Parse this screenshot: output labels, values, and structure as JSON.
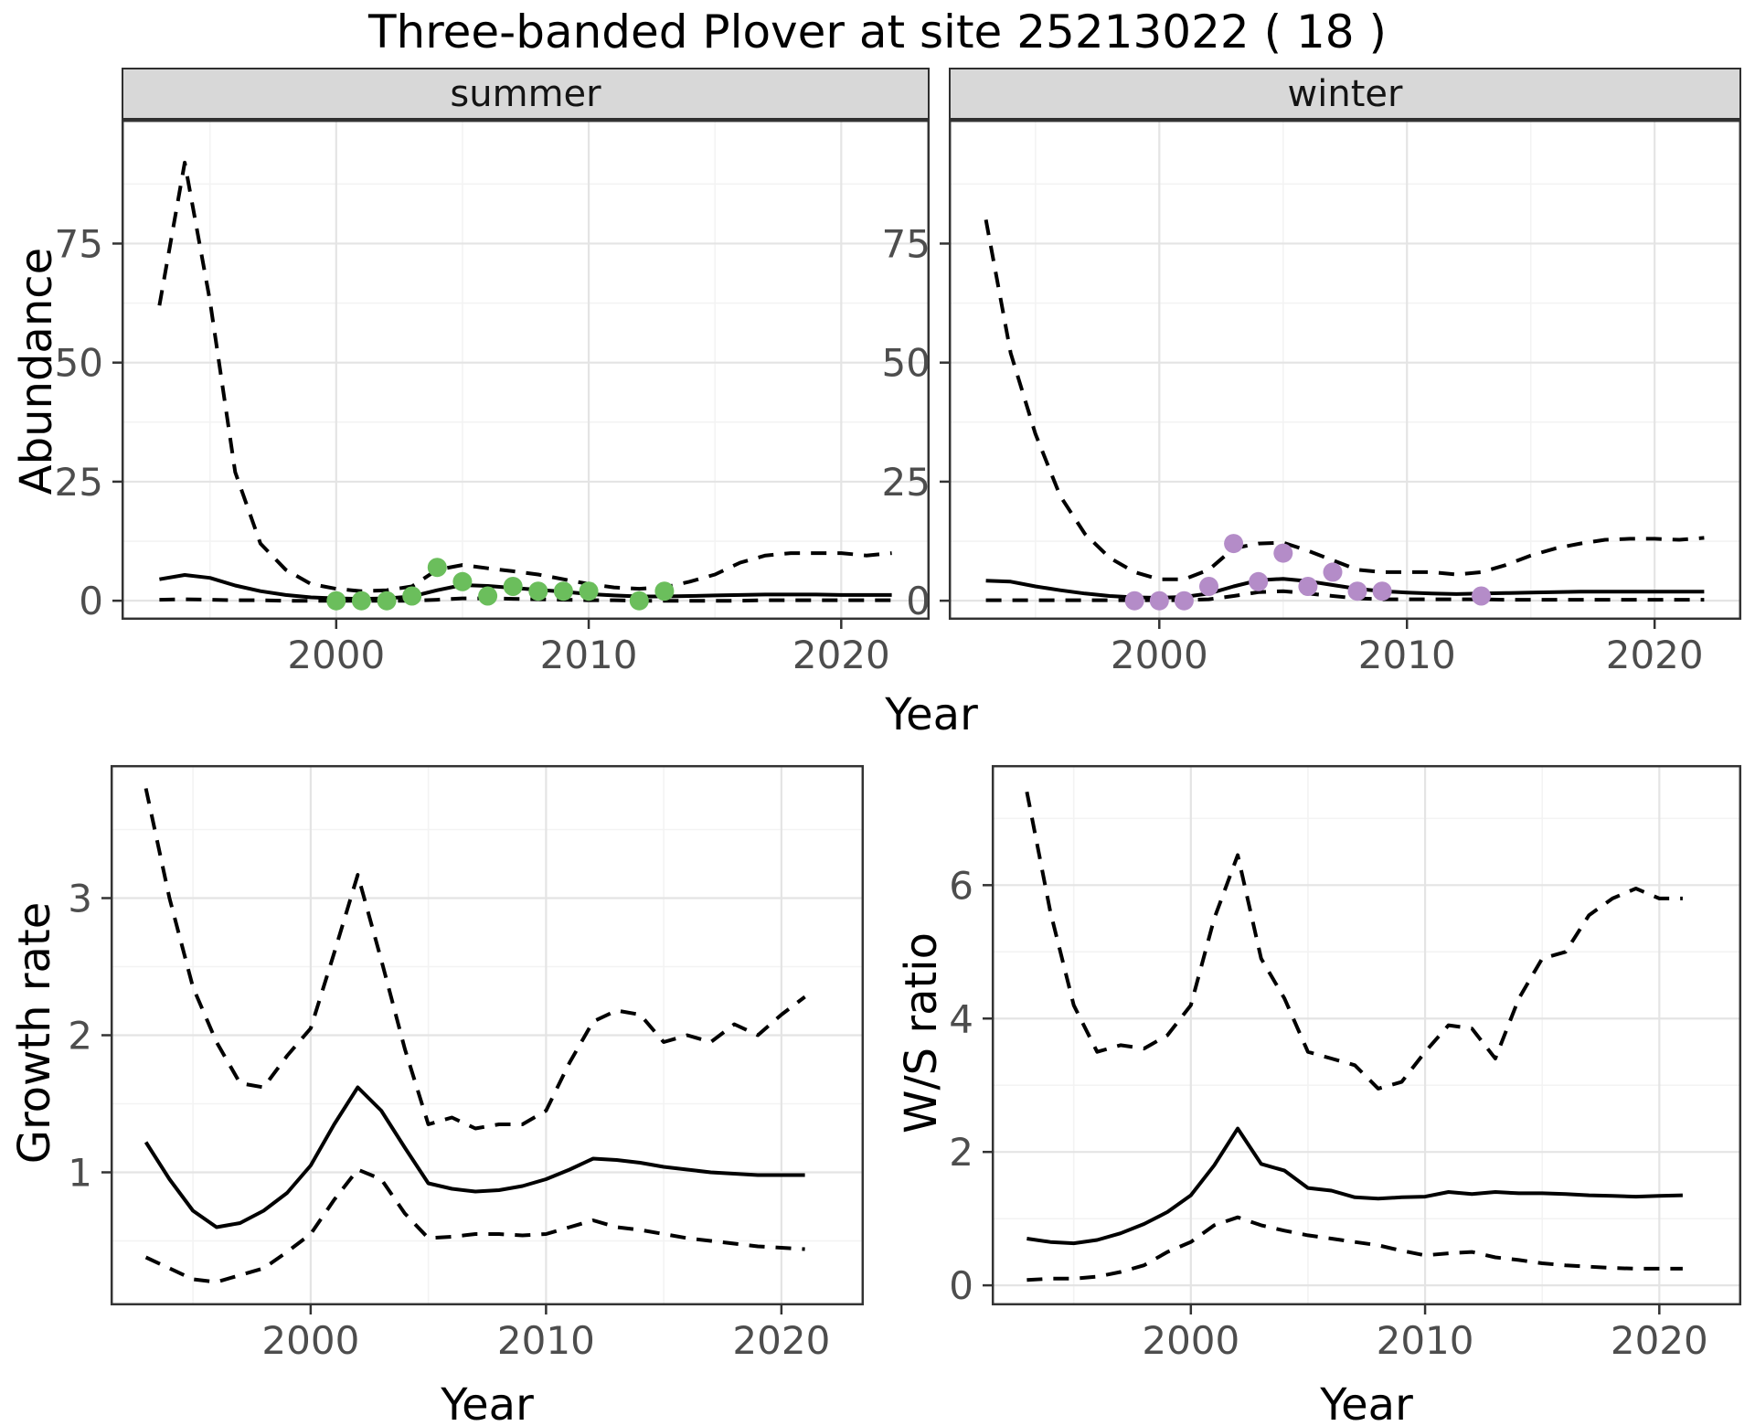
{
  "title": "Three-banded Plover at site 25213022 ( 18 )",
  "axis_titles": {
    "x_top": "Year",
    "x_bottom_left": "Year",
    "x_bottom_right": "Year",
    "y_abundance": "Abundance",
    "y_growth": "Growth rate",
    "y_ws": "W/S ratio"
  },
  "facets": {
    "summer": "summer",
    "winter": "winter"
  },
  "colors": {
    "summer_points": "#6bbe5c",
    "winter_points": "#b48cc8",
    "line": "#000000",
    "panel_border": "#333333",
    "grid_major": "#e4e4e4",
    "grid_minor": "#f3f3f3",
    "tick_text": "#4d4d4d",
    "strip_bg": "#d8d8d8"
  },
  "chart_data": [
    {
      "id": "abundance-summer",
      "type": "line",
      "facet": "summer",
      "x_range": [
        1991.5,
        2023.5
      ],
      "y_range": [
        -4,
        101
      ],
      "x_ticks": [
        2000,
        2010,
        2020
      ],
      "x_minor": [
        1995,
        2005,
        2015
      ],
      "y_ticks": [
        0,
        25,
        50,
        75
      ],
      "y_minor": [
        12.5,
        37.5,
        62.5,
        87.5
      ],
      "x": [
        1993,
        1994,
        1995,
        1996,
        1997,
        1998,
        1999,
        2000,
        2001,
        2002,
        2003,
        2004,
        2005,
        2006,
        2007,
        2008,
        2009,
        2010,
        2011,
        2012,
        2013,
        2014,
        2015,
        2016,
        2017,
        2018,
        2019,
        2020,
        2021,
        2022
      ],
      "series": [
        {
          "name": "lower-ci",
          "style": "dashed",
          "values": [
            0.2,
            0.3,
            0.2,
            0.1,
            0.1,
            0,
            0,
            0,
            0,
            0,
            0,
            0.2,
            0.5,
            0.5,
            0.4,
            0.3,
            0.2,
            0.1,
            0.1,
            0,
            0,
            0,
            0,
            0,
            0.1,
            0.1,
            0.1,
            0.1,
            0.1,
            0.1
          ]
        },
        {
          "name": "upper-ci",
          "style": "dashed",
          "values": [
            62,
            92,
            63,
            27,
            12,
            6.5,
            3.5,
            2.5,
            2.0,
            2.2,
            3.0,
            6.5,
            7.5,
            6.8,
            6.2,
            5.5,
            4.5,
            3.5,
            2.8,
            2.5,
            2.8,
            4.0,
            5.5,
            8.0,
            9.5,
            10,
            10,
            10,
            9.5,
            10
          ]
        },
        {
          "name": "mean",
          "style": "solid",
          "values": [
            4.5,
            5.4,
            4.8,
            3.2,
            2.0,
            1.2,
            0.7,
            0.5,
            0.4,
            0.5,
            0.9,
            2.2,
            3.3,
            3.1,
            2.7,
            2.3,
            1.9,
            1.4,
            1.1,
            0.9,
            0.9,
            1.0,
            1.1,
            1.2,
            1.3,
            1.3,
            1.3,
            1.2,
            1.2,
            1.2
          ]
        }
      ],
      "points": {
        "name": "observed-counts",
        "color": "#6bbe5c",
        "x": [
          2000,
          2001,
          2002,
          2003,
          2004,
          2005,
          2006,
          2007,
          2008,
          2009,
          2010,
          2012,
          2013
        ],
        "y": [
          0,
          0,
          0,
          1,
          7,
          4,
          1,
          3,
          2,
          2,
          2,
          0,
          2
        ]
      }
    },
    {
      "id": "abundance-winter",
      "type": "line",
      "facet": "winter",
      "x_range": [
        1991.5,
        2023.5
      ],
      "y_range": [
        -4,
        101
      ],
      "x_ticks": [
        2000,
        2010,
        2020
      ],
      "x_minor": [
        1995,
        2005,
        2015
      ],
      "y_ticks": [
        0,
        25,
        50,
        75
      ],
      "y_minor": [
        12.5,
        37.5,
        62.5,
        87.5
      ],
      "x": [
        1993,
        1994,
        1995,
        1996,
        1997,
        1998,
        1999,
        2000,
        2001,
        2002,
        2003,
        2004,
        2005,
        2006,
        2007,
        2008,
        2009,
        2010,
        2011,
        2012,
        2013,
        2014,
        2015,
        2016,
        2017,
        2018,
        2019,
        2020,
        2021,
        2022
      ],
      "series": [
        {
          "name": "lower-ci",
          "style": "dashed",
          "values": [
            0.1,
            0.1,
            0.1,
            0.1,
            0.1,
            0.1,
            0.1,
            0.1,
            0.1,
            0.3,
            1.0,
            1.8,
            2.0,
            1.5,
            1.0,
            0.5,
            0.3,
            0.3,
            0.3,
            0.3,
            0.3,
            0.2,
            0.2,
            0.2,
            0.2,
            0.2,
            0.2,
            0.2,
            0.2,
            0.2
          ]
        },
        {
          "name": "upper-ci",
          "style": "dashed",
          "values": [
            80,
            52,
            35,
            22,
            14,
            9,
            6,
            4.5,
            4.5,
            6.5,
            11,
            12,
            12.2,
            10.5,
            8.5,
            6.5,
            6,
            6,
            6,
            5.5,
            6,
            7.5,
            9.5,
            11,
            12,
            12.8,
            13,
            13,
            12.8,
            13.2
          ]
        },
        {
          "name": "mean",
          "style": "solid",
          "values": [
            4.2,
            4.0,
            3.0,
            2.2,
            1.5,
            1.0,
            0.7,
            0.6,
            0.8,
            1.5,
            3.0,
            4.3,
            4.6,
            4.1,
            3.3,
            2.5,
            2.0,
            1.7,
            1.5,
            1.4,
            1.5,
            1.6,
            1.7,
            1.8,
            1.9,
            1.9,
            1.9,
            1.9,
            1.9,
            1.9
          ]
        }
      ],
      "points": {
        "name": "observed-counts",
        "color": "#b48cc8",
        "x": [
          1999,
          2000,
          2001,
          2002,
          2003,
          2004,
          2005,
          2006,
          2007,
          2008,
          2009,
          2013
        ],
        "y": [
          0,
          0,
          0,
          3,
          12,
          4,
          10,
          3,
          6,
          2,
          2,
          1
        ]
      }
    },
    {
      "id": "growth-rate",
      "type": "line",
      "facet": null,
      "x_range": [
        1991.5,
        2023.5
      ],
      "y_range": [
        0.03,
        3.97
      ],
      "x_ticks": [
        2000,
        2010,
        2020
      ],
      "x_minor": [
        1995,
        2005,
        2015
      ],
      "y_ticks": [
        1,
        2,
        3
      ],
      "y_minor": [
        0.5,
        1.5,
        2.5,
        3.5
      ],
      "x": [
        1993,
        1994,
        1995,
        1996,
        1997,
        1998,
        1999,
        2000,
        2001,
        2002,
        2003,
        2004,
        2005,
        2006,
        2007,
        2008,
        2009,
        2010,
        2011,
        2012,
        2013,
        2014,
        2015,
        2016,
        2017,
        2018,
        2019,
        2020,
        2021
      ],
      "series": [
        {
          "name": "lower-ci",
          "style": "dashed",
          "values": [
            0.38,
            0.3,
            0.22,
            0.2,
            0.25,
            0.3,
            0.42,
            0.55,
            0.8,
            1.02,
            0.95,
            0.7,
            0.52,
            0.53,
            0.55,
            0.55,
            0.54,
            0.55,
            0.6,
            0.65,
            0.6,
            0.58,
            0.55,
            0.52,
            0.5,
            0.48,
            0.46,
            0.45,
            0.44
          ]
        },
        {
          "name": "upper-ci",
          "style": "dashed",
          "values": [
            3.8,
            3.0,
            2.35,
            1.95,
            1.65,
            1.62,
            1.85,
            2.05,
            2.6,
            3.17,
            2.55,
            1.9,
            1.35,
            1.4,
            1.32,
            1.35,
            1.35,
            1.45,
            1.8,
            2.1,
            2.18,
            2.15,
            1.95,
            2.0,
            1.95,
            2.08,
            2.0,
            2.15,
            2.28
          ]
        },
        {
          "name": "mean",
          "style": "solid",
          "values": [
            1.22,
            0.95,
            0.72,
            0.6,
            0.63,
            0.72,
            0.85,
            1.05,
            1.35,
            1.62,
            1.45,
            1.18,
            0.92,
            0.88,
            0.86,
            0.87,
            0.9,
            0.95,
            1.02,
            1.1,
            1.09,
            1.07,
            1.04,
            1.02,
            1.0,
            0.99,
            0.98,
            0.98,
            0.98
          ]
        }
      ],
      "points": null
    },
    {
      "id": "ws-ratio",
      "type": "line",
      "facet": null,
      "x_range": [
        1991.5,
        2023.5
      ],
      "y_range": [
        -0.3,
        7.8
      ],
      "x_ticks": [
        2000,
        2010,
        2020
      ],
      "x_minor": [
        1995,
        2005,
        2015
      ],
      "y_ticks": [
        0,
        2,
        4,
        6
      ],
      "y_minor": [
        1,
        3,
        5,
        7
      ],
      "x": [
        1993,
        1994,
        1995,
        1996,
        1997,
        1998,
        1999,
        2000,
        2001,
        2002,
        2003,
        2004,
        2005,
        2006,
        2007,
        2008,
        2009,
        2010,
        2011,
        2012,
        2013,
        2014,
        2015,
        2016,
        2017,
        2018,
        2019,
        2020,
        2021
      ],
      "series": [
        {
          "name": "lower-ci",
          "style": "dashed",
          "values": [
            0.08,
            0.1,
            0.1,
            0.13,
            0.2,
            0.3,
            0.5,
            0.65,
            0.9,
            1.02,
            0.9,
            0.82,
            0.75,
            0.7,
            0.65,
            0.6,
            0.52,
            0.45,
            0.48,
            0.5,
            0.42,
            0.38,
            0.33,
            0.3,
            0.28,
            0.26,
            0.25,
            0.25,
            0.25
          ]
        },
        {
          "name": "upper-ci",
          "style": "dashed",
          "values": [
            7.4,
            5.6,
            4.2,
            3.5,
            3.6,
            3.55,
            3.75,
            4.2,
            5.5,
            6.45,
            4.9,
            4.3,
            3.5,
            3.4,
            3.3,
            2.95,
            3.05,
            3.5,
            3.9,
            3.85,
            3.4,
            4.3,
            4.9,
            5.0,
            5.55,
            5.8,
            5.95,
            5.8,
            5.8
          ]
        },
        {
          "name": "mean",
          "style": "solid",
          "values": [
            0.7,
            0.65,
            0.63,
            0.68,
            0.78,
            0.92,
            1.1,
            1.35,
            1.8,
            2.35,
            1.82,
            1.72,
            1.46,
            1.42,
            1.32,
            1.3,
            1.32,
            1.33,
            1.4,
            1.37,
            1.4,
            1.38,
            1.38,
            1.37,
            1.35,
            1.34,
            1.33,
            1.34,
            1.35
          ]
        }
      ],
      "points": null
    }
  ]
}
